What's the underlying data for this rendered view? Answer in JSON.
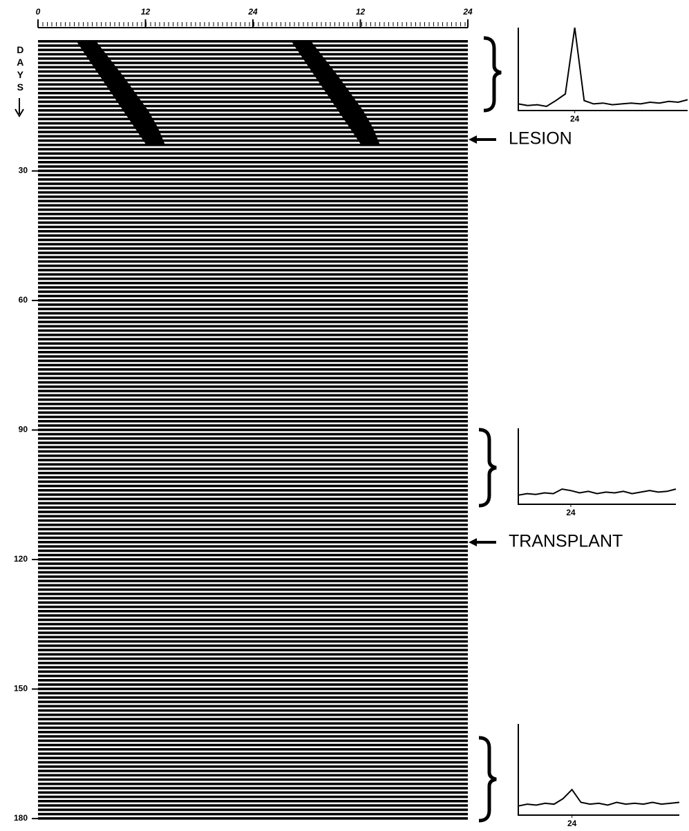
{
  "chart_data": {
    "type": "actogram",
    "y_label": "DAYS",
    "xlim": [
      0,
      48
    ],
    "xticks": [
      0,
      12,
      24,
      {
        "value": 36,
        "label": "12"
      },
      {
        "value": 48,
        "label": "24"
      }
    ],
    "ylim": [
      0,
      180
    ],
    "yticks": [
      30,
      60,
      90,
      120,
      150,
      180
    ],
    "color": "#000000",
    "activity": {
      "days": [
        0,
        4,
        8,
        12,
        16,
        20,
        24
      ],
      "onset": [
        4.3,
        5.6,
        6.9,
        8.2,
        9.5,
        10.8,
        12.1
      ],
      "offset": [
        6.5,
        8.0,
        9.5,
        10.9,
        12.3,
        13.4,
        14.2
      ]
    },
    "annotations": [
      "LESION",
      "TRANSPLANT"
    ],
    "insets": [
      {
        "type": "line",
        "xlim": [
          18,
          36
        ],
        "ylim": [
          0,
          100
        ],
        "xticks": [
          24
        ],
        "x": [
          18,
          19,
          20,
          21,
          22,
          23,
          24,
          25,
          26,
          27,
          28,
          29,
          30,
          31,
          32,
          33,
          34,
          35,
          36
        ],
        "values": [
          8,
          6,
          7,
          5,
          12,
          20,
          100,
          12,
          8,
          9,
          7,
          8,
          9,
          8,
          10,
          9,
          11,
          10,
          13
        ]
      },
      {
        "type": "line",
        "xlim": [
          18,
          36
        ],
        "ylim": [
          0,
          100
        ],
        "xticks": [
          24
        ],
        "x": [
          18,
          19,
          20,
          21,
          22,
          23,
          24,
          25,
          26,
          27,
          28,
          29,
          30,
          31,
          32,
          33,
          34,
          35,
          36
        ],
        "values": [
          12,
          14,
          13,
          15,
          14,
          20,
          18,
          15,
          17,
          14,
          16,
          15,
          17,
          14,
          16,
          18,
          16,
          17,
          20
        ]
      },
      {
        "type": "line",
        "xlim": [
          18,
          36
        ],
        "ylim": [
          0,
          100
        ],
        "xticks": [
          24
        ],
        "x": [
          18,
          19,
          20,
          21,
          22,
          23,
          24,
          25,
          26,
          27,
          28,
          29,
          30,
          31,
          32,
          33,
          34,
          35,
          36
        ],
        "values": [
          10,
          12,
          11,
          13,
          12,
          18,
          28,
          14,
          12,
          13,
          11,
          14,
          12,
          13,
          12,
          14,
          12,
          13,
          14
        ]
      }
    ]
  }
}
